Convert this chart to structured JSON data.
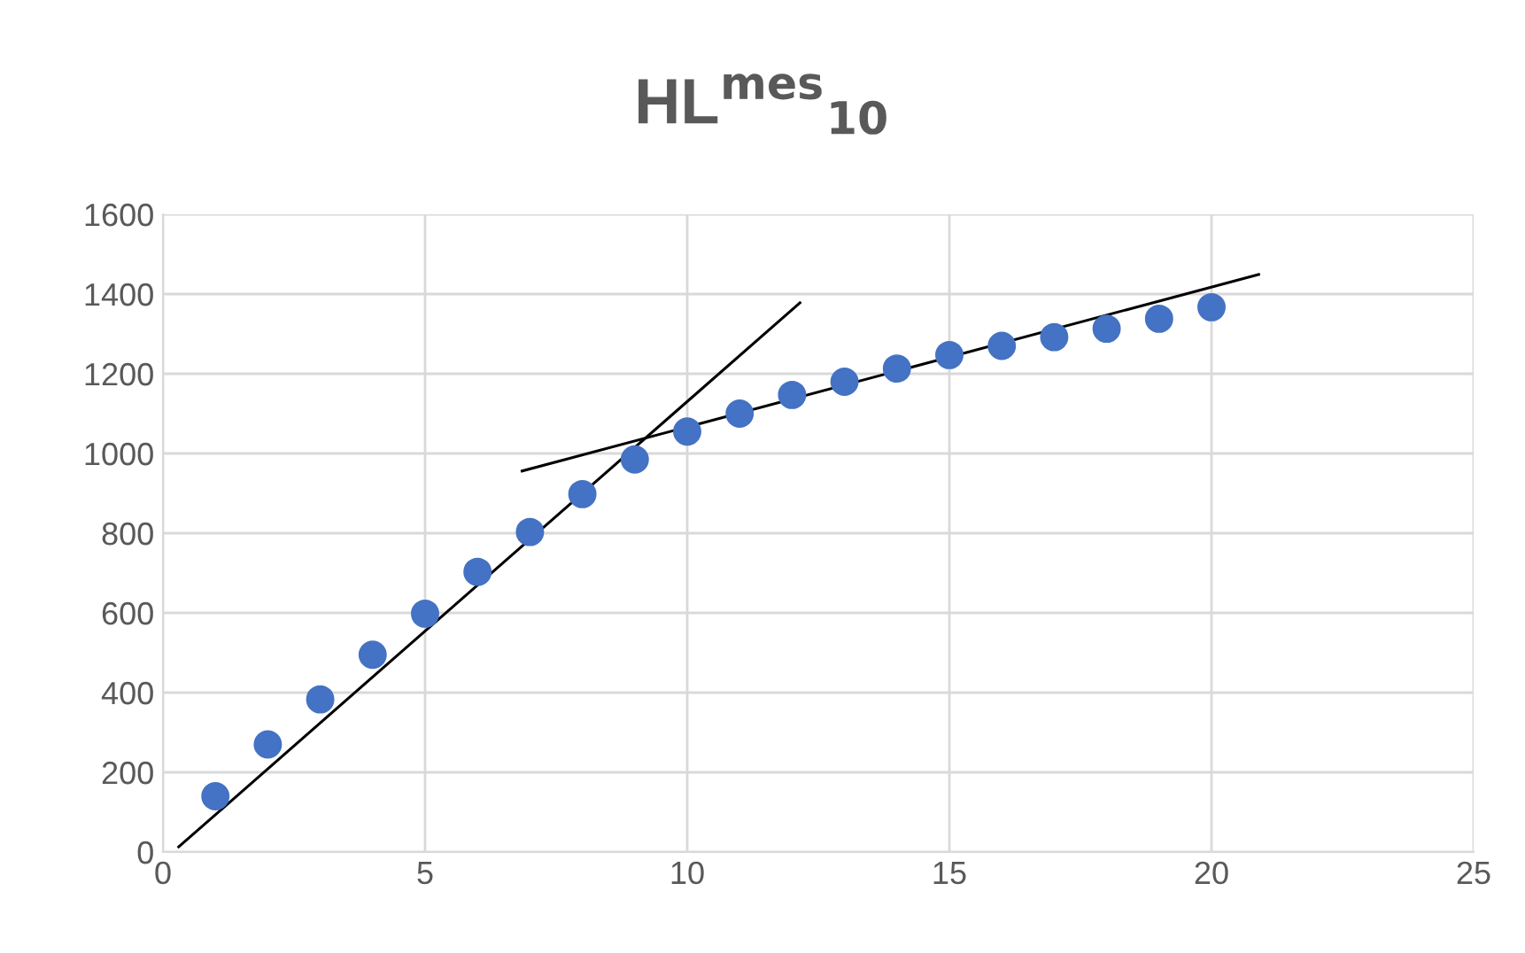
{
  "chart_data": {
    "type": "scatter",
    "title": "HL$^{mes}$$_{10}$",
    "xlim": [
      0,
      25
    ],
    "xticks": [
      0,
      5,
      10,
      15,
      20,
      25
    ],
    "ylim": [
      0,
      1600
    ],
    "yticks": [
      0,
      200,
      400,
      600,
      800,
      1000,
      1200,
      1400,
      1600
    ],
    "grid": true,
    "marker": "circle",
    "series": [
      {
        "color": "#4472c4",
        "x": [
          1,
          2,
          3,
          4,
          5,
          6,
          7,
          8,
          9,
          10,
          11,
          12,
          13,
          14,
          15,
          16,
          17,
          18,
          19,
          20
        ],
        "values": [
          140,
          270,
          383,
          495,
          598,
          703,
          803,
          898,
          985,
          1055,
          1100,
          1147,
          1180,
          1213,
          1247,
          1270,
          1292,
          1313,
          1338,
          1367
        ]
      },
      {
        "type": "line",
        "color": "#000000",
        "marker": "none",
        "x": [
          0.3,
          12.15
        ],
        "values": [
          13,
          1378
        ]
      },
      {
        "type": "line",
        "color": "#000000",
        "marker": "none",
        "x": [
          6.85,
          20.9
        ],
        "values": [
          956,
          1449
        ]
      }
    ]
  }
}
